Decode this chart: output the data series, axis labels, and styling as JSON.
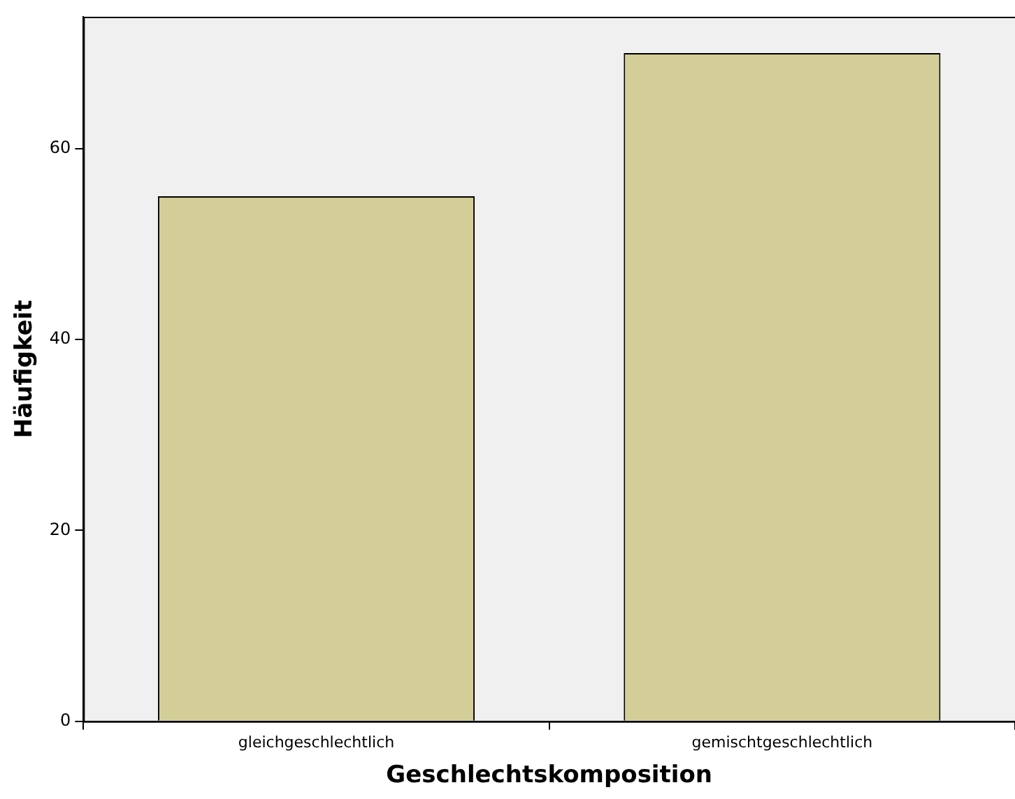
{
  "chart_data": {
    "type": "bar",
    "xlabel": "Geschlechtskomposition",
    "ylabel": "Häufigkeit",
    "categories": [
      "gleichgeschlechtlich",
      "gemischtgeschlechtlich"
    ],
    "values": [
      55,
      70
    ],
    "color": "#d3cd97",
    "ylim": [
      0,
      73.8
    ],
    "yticks": [
      0,
      20,
      40,
      60
    ],
    "grid": false,
    "legend": false
  }
}
